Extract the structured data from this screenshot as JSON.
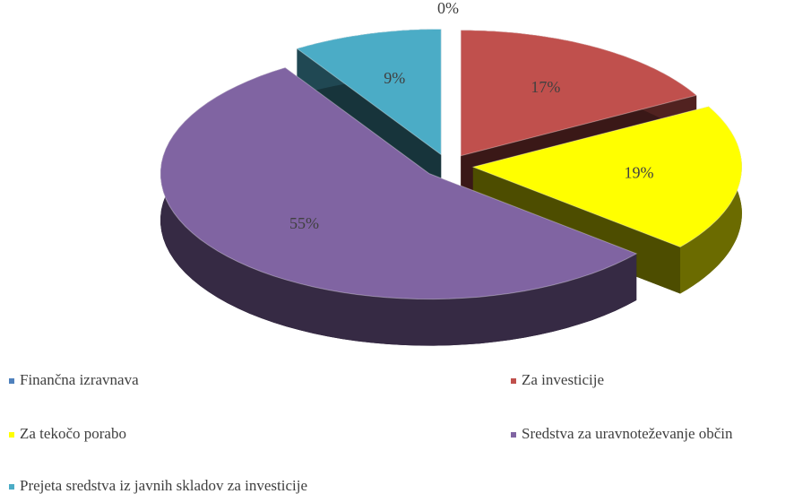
{
  "chart_data": {
    "type": "pie",
    "categories": [
      "Finančna izravnava",
      "Za investicije",
      "Za tekočo porabo",
      "Sredstva za uravnoteževanje občin",
      "Prejeta sredstva iz javnih skladov za investicije"
    ],
    "values": [
      0,
      17,
      19,
      55,
      9
    ],
    "value_labels": [
      "0%",
      "17%",
      "19%",
      "55%",
      "9%"
    ],
    "colors": [
      "#4f81bd",
      "#c0504d",
      "#ffff00",
      "#8064a2",
      "#4bacc6"
    ],
    "legend": "bottom"
  }
}
